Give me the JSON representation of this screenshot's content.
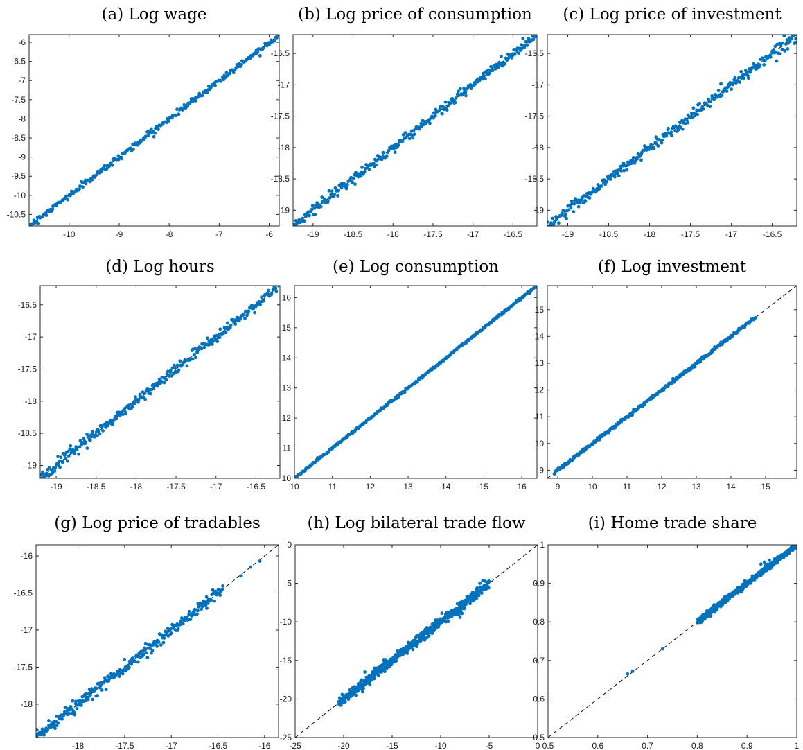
{
  "colors": {
    "points": "#0072BD",
    "reference_line": "#000000",
    "axes": "#262626"
  },
  "chart_data": [
    {
      "type": "scatter",
      "title": "(a) Log wage",
      "xlim": [
        -10.8,
        -5.8
      ],
      "ylim": [
        -10.8,
        -5.8
      ],
      "xticks": [
        -10,
        -9,
        -8,
        -7,
        -6
      ],
      "xtick_labels": [
        "-10",
        "-9",
        "-8",
        "-7",
        "-6"
      ],
      "yticks": [
        -10.5,
        -10,
        -9.5,
        -9,
        -8.5,
        -8,
        -7.5,
        -7,
        -6.5,
        -6
      ],
      "ytick_labels": [
        "-10.5",
        "-10",
        "-9.5",
        "-9",
        "-8.5",
        "-8",
        "-7.5",
        "-7",
        "-6.5",
        "-6"
      ],
      "reference_line": "45-degree dashed",
      "point_range": [
        -10.8,
        -5.8
      ],
      "spread": 0.04,
      "points_count": 260,
      "outliers": []
    },
    {
      "type": "scatter",
      "title": "(b) Log price of consumption",
      "xlim": [
        -19.25,
        -16.2
      ],
      "ylim": [
        -19.25,
        -16.2
      ],
      "xticks": [
        -19,
        -18.5,
        -18,
        -17.5,
        -17,
        -16.5
      ],
      "xtick_labels": [
        "-19",
        "-18.5",
        "-18",
        "-17.5",
        "-17",
        "-16.5"
      ],
      "yticks": [
        -19,
        -18.5,
        -18,
        -17.5,
        -17,
        -16.5
      ],
      "ytick_labels": [
        "-19",
        "-18.5",
        "-18",
        "-17.5",
        "-17",
        "-16.5"
      ],
      "reference_line": "45-degree dashed",
      "point_range": [
        -19.25,
        -16.2
      ],
      "spread": 0.04,
      "points_count": 300,
      "outliers": []
    },
    {
      "type": "scatter",
      "title": "(c) Log price of investment",
      "xlim": [
        -19.25,
        -16.2
      ],
      "ylim": [
        -19.25,
        -16.2
      ],
      "xticks": [
        -19,
        -18.5,
        -18,
        -17.5,
        -17,
        -16.5
      ],
      "xtick_labels": [
        "-19",
        "-18.5",
        "-18",
        "-17.5",
        "-17",
        "-16.5"
      ],
      "yticks": [
        -19,
        -18.5,
        -18,
        -17.5,
        -17,
        -16.5
      ],
      "ytick_labels": [
        "-19",
        "-18.5",
        "-18",
        "-17.5",
        "-17",
        "-16.5"
      ],
      "reference_line": "45-degree dashed",
      "point_range": [
        -19.25,
        -16.2
      ],
      "spread": 0.045,
      "points_count": 300,
      "outliers": []
    },
    {
      "type": "scatter",
      "title": "(d) Log hours",
      "xlim": [
        -19.2,
        -16.2
      ],
      "ylim": [
        -19.2,
        -16.2
      ],
      "xticks": [
        -19,
        -18.5,
        -18,
        -17.5,
        -17,
        -16.5
      ],
      "xtick_labels": [
        "-19",
        "-18.5",
        "-18",
        "-17.5",
        "-17",
        "-16.5"
      ],
      "yticks": [
        -19,
        -18.5,
        -18,
        -17.5,
        -17,
        -16.5
      ],
      "ytick_labels": [
        "-19",
        "-18.5",
        "-18",
        "-17.5",
        "-17",
        "-16.5"
      ],
      "reference_line": "45-degree dashed",
      "point_range": [
        -19.2,
        -16.2
      ],
      "spread": 0.04,
      "points_count": 300,
      "outliers": []
    },
    {
      "type": "scatter",
      "title": "(e) Log consumption",
      "xlim": [
        10,
        16.4
      ],
      "ylim": [
        10,
        16.4
      ],
      "xticks": [
        10,
        11,
        12,
        13,
        14,
        15,
        16
      ],
      "xtick_labels": [
        "10",
        "11",
        "12",
        "13",
        "14",
        "15",
        "16"
      ],
      "yticks": [
        10,
        11,
        12,
        13,
        14,
        15,
        16
      ],
      "ytick_labels": [
        "10",
        "11",
        "12",
        "13",
        "14",
        "15",
        "16"
      ],
      "reference_line": "45-degree dashed",
      "point_range": [
        10,
        16.4
      ],
      "spread": 0.02,
      "points_count": 320,
      "outliers": []
    },
    {
      "type": "scatter",
      "title": "(f) Log investment",
      "xlim": [
        8.7,
        15.9
      ],
      "ylim": [
        8.7,
        15.9
      ],
      "xticks": [
        9,
        10,
        11,
        12,
        13,
        14,
        15
      ],
      "xtick_labels": [
        "9",
        "10",
        "11",
        "12",
        "13",
        "14",
        "15"
      ],
      "yticks": [
        9,
        10,
        11,
        12,
        13,
        14,
        15
      ],
      "ytick_labels": [
        "9",
        "10",
        "11",
        "12",
        "13",
        "14",
        "15"
      ],
      "reference_line": "45-degree dashed",
      "point_range": [
        8.9,
        14.7
      ],
      "spread": 0.03,
      "points_count": 300,
      "outliers": []
    },
    {
      "type": "scatter",
      "title": "(g) Log price of tradables",
      "xlim": [
        -18.45,
        -15.85
      ],
      "ylim": [
        -18.45,
        -15.85
      ],
      "xticks": [
        -18,
        -17.5,
        -17,
        -16.5,
        -16
      ],
      "xtick_labels": [
        "-18",
        "-17.5",
        "-17",
        "-16.5",
        "-16"
      ],
      "yticks": [
        -18,
        -17.5,
        -17,
        -16.5,
        -16
      ],
      "ytick_labels": [
        "-18",
        "-17.5",
        "-17",
        "-16.5",
        "-16"
      ],
      "reference_line": "45-degree dashed",
      "point_range": [
        -18.45,
        -16.45
      ],
      "spread": 0.04,
      "points_count": 300,
      "outliers": [
        [
          -16.25,
          -16.27
        ],
        [
          -16.15,
          -16.15
        ],
        [
          -16.05,
          -16.07
        ]
      ]
    },
    {
      "type": "scatter",
      "title": "(h) Log bilateral trade flow",
      "xlim": [
        -25,
        0
      ],
      "ylim": [
        -25,
        0
      ],
      "xticks": [
        -25,
        -20,
        -15,
        -10,
        -5,
        0
      ],
      "xtick_labels": [
        "-25",
        "-20",
        "-15",
        "-10",
        "-5",
        "0"
      ],
      "yticks": [
        -25,
        -20,
        -15,
        -10,
        -5,
        0
      ],
      "ytick_labels": [
        "-25",
        "-20",
        "-15",
        "-10",
        "-5",
        "0"
      ],
      "reference_line": "45-degree dashed",
      "point_range": [
        -20.5,
        -5
      ],
      "spread": 0.35,
      "points_count": 520,
      "outliers": [
        [
          -8,
          -9.4
        ],
        [
          -8.5,
          -9
        ],
        [
          -8.2,
          -8.7
        ],
        [
          -7.6,
          -8.3
        ],
        [
          -7.8,
          -8.9
        ]
      ]
    },
    {
      "type": "scatter",
      "title": "(i) Home trade share",
      "xlim": [
        0.5,
        1
      ],
      "ylim": [
        0.5,
        1
      ],
      "xticks": [
        0.5,
        0.6,
        0.7,
        0.8,
        0.9,
        1
      ],
      "xtick_labels": [
        "0.5",
        "0.6",
        "0.7",
        "0.8",
        "0.9",
        "1"
      ],
      "yticks": [
        0.5,
        0.6,
        0.7,
        0.8,
        0.9,
        1
      ],
      "ytick_labels": [
        "0.5",
        "0.6",
        "0.7",
        "0.8",
        "0.9",
        "1"
      ],
      "reference_line": "45-degree dashed",
      "point_range": [
        0.8,
        1.0
      ],
      "spread": 0.004,
      "points_count": 380,
      "outliers": [
        [
          0.66,
          0.665
        ],
        [
          0.67,
          0.672
        ],
        [
          0.73,
          0.73
        ],
        [
          0.935,
          0.955
        ],
        [
          0.945,
          0.96
        ],
        [
          0.928,
          0.95
        ]
      ]
    }
  ]
}
